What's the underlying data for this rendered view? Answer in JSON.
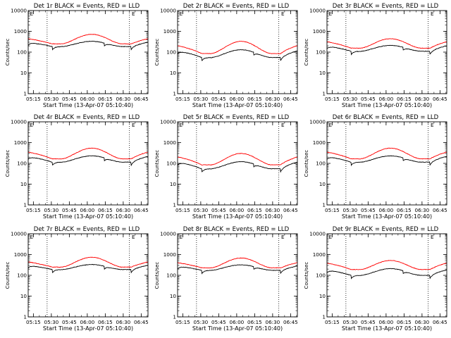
{
  "figure": {
    "background": "#ffffff",
    "axis_color": "#000000"
  },
  "chart_data": {
    "type": "line",
    "scale_y": "log",
    "ylim": [
      1,
      10000
    ],
    "ytick_values": [
      1,
      10,
      100,
      1000,
      10000
    ],
    "ytick_labels": [
      "1",
      "10",
      "100",
      "1000",
      "10000"
    ],
    "ylabel": "Counts/sec",
    "xlabel": "Start Time (13-Apr-07 05:10:40)",
    "x_start_minutes": 0,
    "x_end_minutes": 100,
    "xtick_minutes": [
      4.33,
      19.33,
      34.33,
      49.33,
      64.33,
      79.33,
      94.33
    ],
    "xtick_labels": [
      "05:15",
      "05:30",
      "05:45",
      "06:00",
      "06:15",
      "06:30",
      "06:45"
    ],
    "vertical_dotted_lines_minutes": [
      15.8,
      84.5
    ],
    "series_colors": {
      "events": "#000000",
      "lld": "#ff0000"
    },
    "panels": [
      {
        "title": "Det 1r BLACK = Events, RED = LLD",
        "mark": "E",
        "lld_base": 250,
        "lld_peak": 720,
        "event_base": 185,
        "event_peak": 330,
        "edge_rise": 0.55
      },
      {
        "title": "Det 2r BLACK = Events, RED = LLD",
        "mark": "E",
        "lld_base": 85,
        "lld_peak": 330,
        "event_base": 55,
        "event_peak": 130,
        "edge_rise": 1.0
      },
      {
        "title": "Det 3r BLACK = Events, RED = LLD",
        "mark": "E",
        "lld_base": 155,
        "lld_peak": 440,
        "event_base": 110,
        "event_peak": 210,
        "edge_rise": 0.75
      },
      {
        "title": "Det 4r BLACK = Events, RED = LLD",
        "mark": "E",
        "lld_base": 165,
        "lld_peak": 540,
        "event_base": 115,
        "event_peak": 230,
        "edge_rise": 0.8
      },
      {
        "title": "Det 5r BLACK = Events, RED = LLD",
        "mark": "E",
        "lld_base": 85,
        "lld_peak": 300,
        "event_base": 55,
        "event_peak": 120,
        "edge_rise": 1.0
      },
      {
        "title": "Det 6r BLACK = Events, RED = LLD",
        "mark": "E",
        "lld_base": 165,
        "lld_peak": 540,
        "event_base": 115,
        "event_peak": 230,
        "edge_rise": 0.8
      },
      {
        "title": "Det 7r BLACK = Events, RED = LLD",
        "mark": "E",
        "lld_base": 250,
        "lld_peak": 740,
        "event_base": 190,
        "event_peak": 330,
        "edge_rise": 0.55
      },
      {
        "title": "Det 8r BLACK = Events, RED = LLD",
        "mark": "E",
        "lld_base": 230,
        "lld_peak": 680,
        "event_base": 175,
        "event_peak": 320,
        "edge_rise": 0.55
      },
      {
        "title": "Det 9r BLACK = Events, RED = LLD",
        "mark": "E",
        "lld_base": 190,
        "lld_peak": 520,
        "event_base": 100,
        "event_peak": 210,
        "edge_rise": 0.75
      }
    ]
  }
}
